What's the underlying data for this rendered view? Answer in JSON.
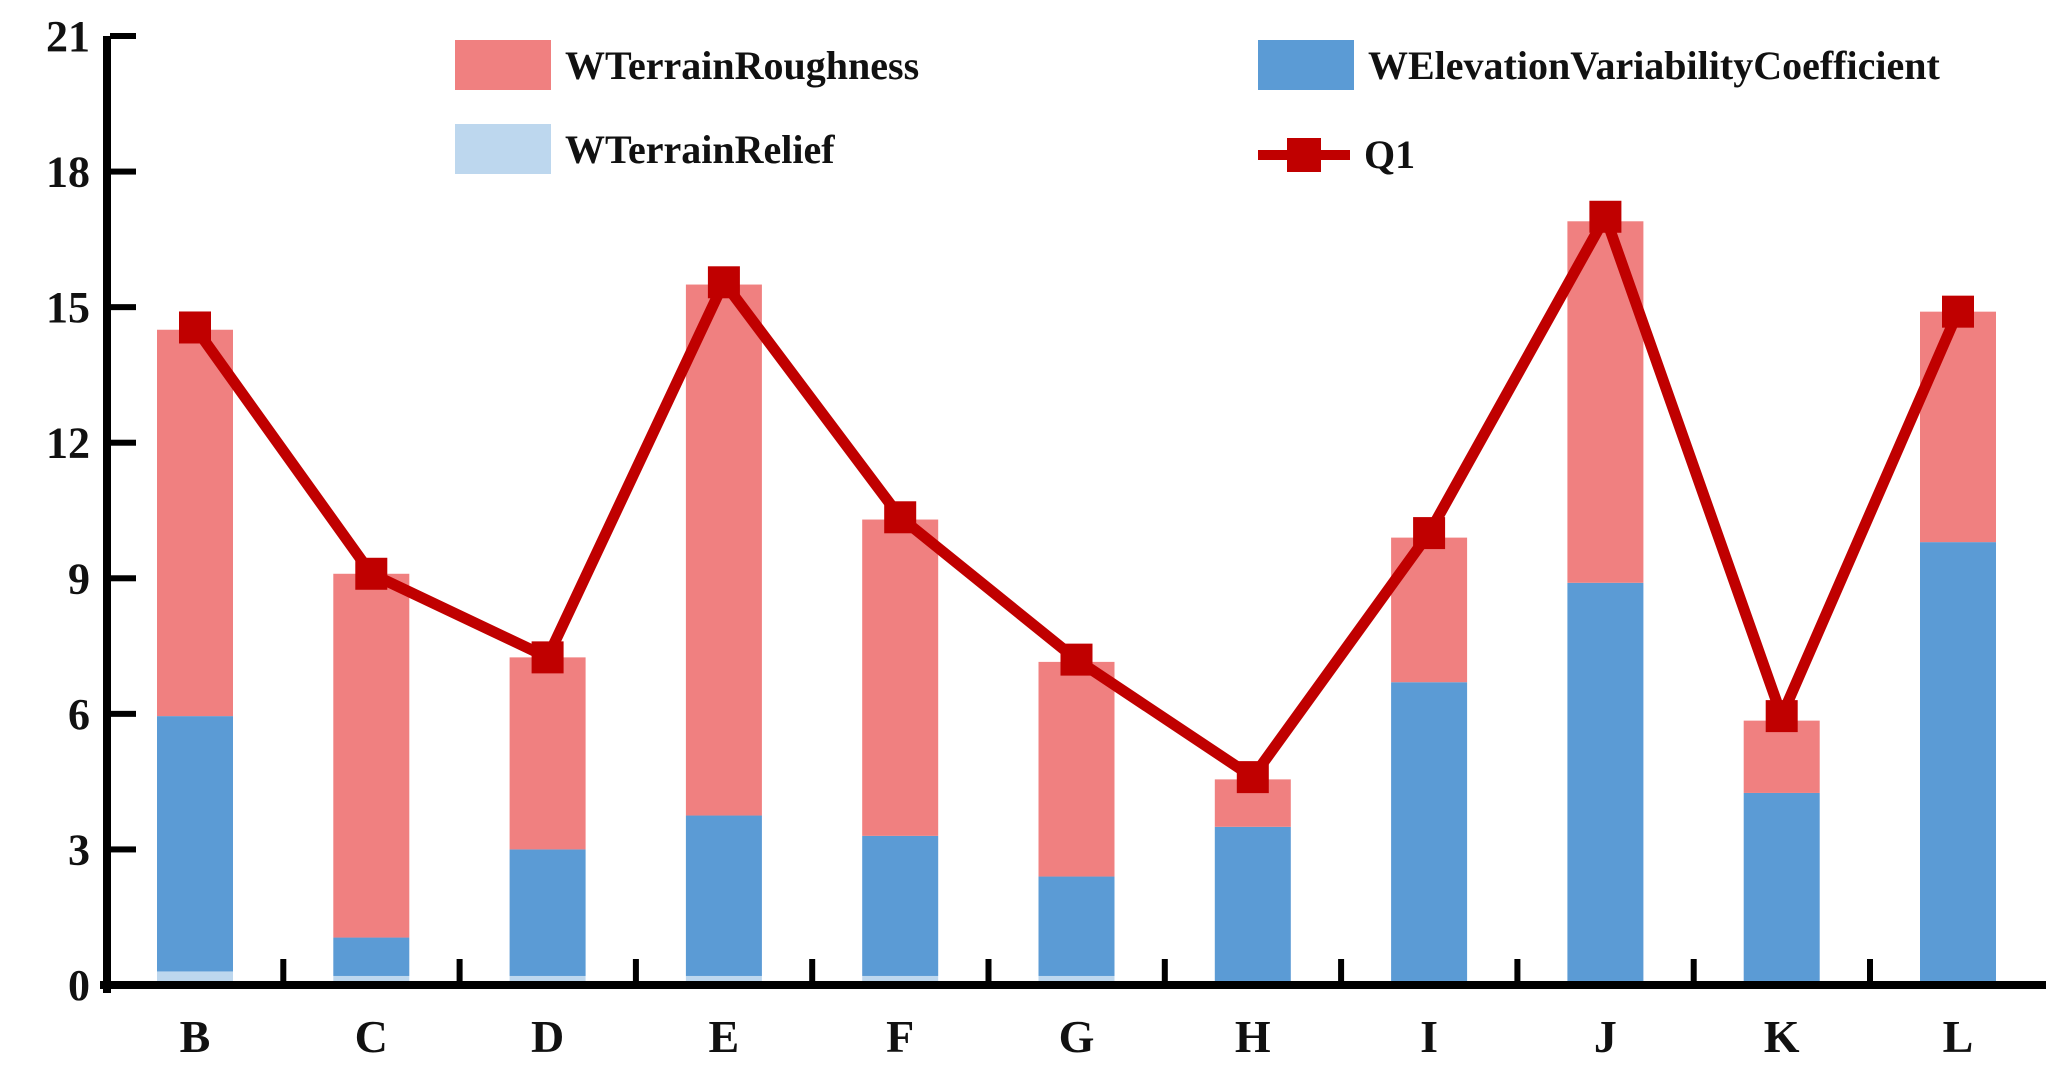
{
  "chart_data": {
    "type": "bar",
    "subtype": "stacked-bars-with-line-overlay",
    "title": "",
    "xlabel": "",
    "ylabel": "",
    "categories": [
      "B",
      "C",
      "D",
      "E",
      "F",
      "G",
      "H",
      "I",
      "J",
      "K",
      "L"
    ],
    "series": [
      {
        "name": "WTerrainRelief",
        "type": "bar",
        "color": "#BDD7EE",
        "values": [
          0.3,
          0.2,
          0.2,
          0.2,
          0.2,
          0.2,
          0,
          0,
          0,
          0,
          0
        ]
      },
      {
        "name": "WElevationVariabilityCoefficient",
        "type": "bar",
        "color": "#5B9BD5",
        "values": [
          5.65,
          0.85,
          2.8,
          3.55,
          3.1,
          2.2,
          3.5,
          6.7,
          8.9,
          4.25,
          9.8
        ]
      },
      {
        "name": "WTerrainRoughness",
        "type": "bar",
        "color": "#F08080",
        "values": [
          8.55,
          8.05,
          4.25,
          11.75,
          7.0,
          4.75,
          1.05,
          3.2,
          8.0,
          1.6,
          5.1
        ]
      },
      {
        "name": "Q1",
        "type": "line",
        "color": "#C00000",
        "values": [
          14.55,
          9.1,
          7.25,
          15.55,
          10.35,
          7.2,
          4.6,
          10.0,
          17.0,
          5.95,
          14.9
        ]
      }
    ],
    "bar_totals": [
      14.5,
      9.1,
      7.25,
      15.5,
      10.3,
      7.15,
      4.55,
      9.9,
      16.9,
      5.85,
      14.9
    ],
    "ylim": [
      0,
      21
    ],
    "yticks": [
      "0",
      "3",
      "6",
      "9",
      "12",
      "15",
      "18",
      "21"
    ],
    "grid": "off",
    "legend_position": "top",
    "axis_color": "#000000"
  },
  "legend": {
    "roughness_label": "WTerrainRoughness",
    "elevation_label": "WElevationVariabilityCoefficient",
    "relief_label": "WTerrainRelief",
    "q1_label": "Q1"
  }
}
